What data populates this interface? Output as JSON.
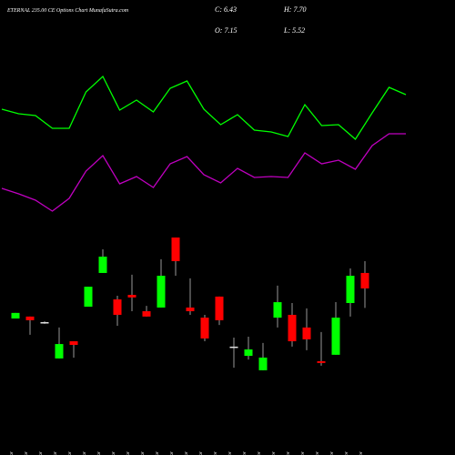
{
  "chart_data": {
    "type": "candlestick",
    "title": "ETERNAL 235.00 CE Options Chart MunafaSutra.com",
    "stats": [
      "C: 6.43",
      "H: 7.70",
      "O: 7.15",
      "L: 5.52"
    ],
    "categories": [
      "09 Mar",
      "10 Mar",
      "11 Mar",
      "12 Mar",
      "13 Mar",
      "17 Mar",
      "18 Mar",
      "19 Mar",
      "20 Mar",
      "21 Mar",
      "24 Mar",
      "25 Mar",
      "26 Mar",
      "27 Mar",
      "01 Apr",
      "02 Apr",
      "03 Apr",
      "04 Apr",
      "07 Apr",
      "08 Apr",
      "09 Apr",
      "11 Apr",
      "15 Apr",
      "16 Apr",
      "17 Apr"
    ],
    "open": [
      5.03,
      5.12,
      4.86,
      3.17,
      3.97,
      5.58,
      7.15,
      5.92,
      6.13,
      5.37,
      5.54,
      8.8,
      5.54,
      5.07,
      6.05,
      3.72,
      3.29,
      2.62,
      5.07,
      5.2,
      4.61,
      3.04,
      3.34,
      5.75,
      7.15
    ],
    "high": [
      5.29,
      5.12,
      4.9,
      4.61,
      3.97,
      6.51,
      8.25,
      6.09,
      7.07,
      5.62,
      7.79,
      8.8,
      6.9,
      5.2,
      6.05,
      4.14,
      4.18,
      3.89,
      6.56,
      5.75,
      5.5,
      4.4,
      5.79,
      7.36,
      7.7
    ],
    "low": [
      5.03,
      4.27,
      4.78,
      3.17,
      3.21,
      5.58,
      7.15,
      4.69,
      5.37,
      5.12,
      5.54,
      7.02,
      5.2,
      3.97,
      4.73,
      2.74,
      3.12,
      2.62,
      4.61,
      3.72,
      3.55,
      2.83,
      3.34,
      5.12,
      5.52
    ],
    "close": [
      5.29,
      4.95,
      4.86,
      3.84,
      3.8,
      6.51,
      7.91,
      5.2,
      6.01,
      5.12,
      7.02,
      7.7,
      5.37,
      4.1,
      4.95,
      3.72,
      3.59,
      3.21,
      5.79,
      3.97,
      4.06,
      2.96,
      5.07,
      7.02,
      6.43
    ],
    "ylim": [
      2,
      9
    ],
    "up_color": "#00ff00",
    "down_color": "#ff0000",
    "flat_color": "#e0e0e0",
    "line_ylim": [
      0,
      100
    ],
    "lines": [
      {
        "color": "#00ff00",
        "values": [
          70,
          67.5,
          66.5,
          59.5,
          59.5,
          79.5,
          88,
          69.5,
          75,
          68.5,
          81.5,
          85.5,
          70,
          61.5,
          67,
          58.5,
          57.5,
          55,
          72.5,
          61,
          61.5,
          53.5,
          68,
          82,
          78
        ]
      },
      {
        "color": "#c000c0",
        "values": [
          26.5,
          23.5,
          20,
          14,
          21,
          36,
          44.5,
          29,
          33,
          27,
          40,
          44,
          34,
          29.5,
          37.5,
          32.5,
          33,
          32.5,
          46,
          40,
          42,
          37,
          50,
          56.5,
          56.5
        ]
      }
    ]
  }
}
